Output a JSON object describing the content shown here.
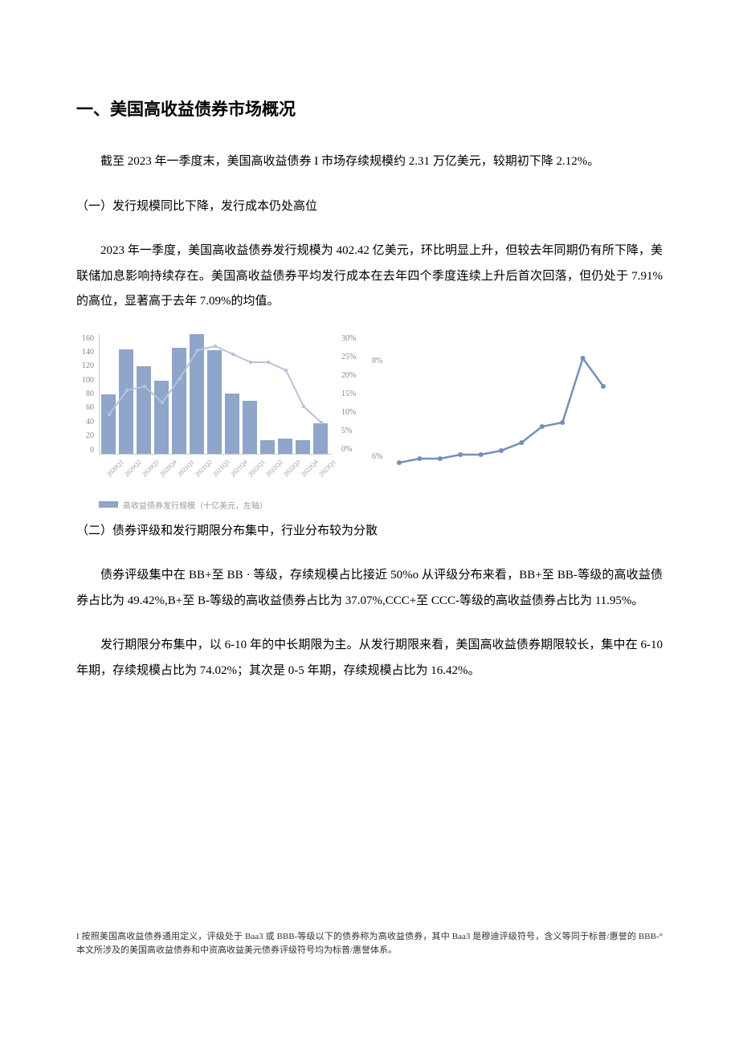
{
  "heading": "一、美国高收益债券市场概况",
  "para1": "截至 2023 年一季度末，美国高收益债券 I 市场存续规模约 2.31 万亿美元，较期初下降 2.12%。",
  "sub1": "（一）发行规模同比下降，发行成本仍处高位",
  "para2": "2023 年一季度，美国高收益债券发行规模为 402.42 亿美元，环比明显上升，但较去年同期仍有所下降，美联储加息影响持续存在。美国高收益债券平均发行成本在去年四个季度连续上升后首次回落，但仍处于 7.91%的高位，显著高于去年 7.09%的均值。",
  "sub2": "（二）债券评级和发行期限分布集中，行业分布较为分散",
  "para3": "债券评级集中在 BB+至 BB · 等级，存续规模占比接近 50%o 从评级分布来看，BB+至 BB-等级的高收益债券占比为 49.42%,B+至 B-等级的高收益债券占比为 37.07%,CCC+至 CCC-等级的高收益债券占比为 11.95%。",
  "para4": "发行期限分布集中，以 6-10 年的中长期限为主。从发行期限来看，美国高收益债券期限较长，集中在 6-10 年期，存续规模占比为 74.02%；其次是 0-5 年期，存续规模占比为 16.42%。",
  "footnote": "I 按照美国高收益债券通用定义，评级处于 Baa3 或 BBB-等级以下的债券称为高收益债券，其中 Baa3 是穆迪评级符号，含义等同于标普/惠誉的 BBB-°本文所涉及的美国高收益债券和中资高收益美元债券评级符号均为标普/惠誉体系。",
  "chart_left": {
    "type": "bar+line",
    "y_left_ticks": [
      "160",
      "140",
      "120",
      "100",
      "80",
      "60",
      "40",
      "20",
      "0"
    ],
    "y_right_ticks": [
      "30%",
      "25%",
      "20%",
      "15%",
      "10%",
      "5%",
      "0%"
    ],
    "bar_color": "#8fa5c9",
    "line_color": "#b6c2d8",
    "bars": [
      78,
      138,
      116,
      97,
      140,
      158,
      137,
      80,
      70,
      18,
      20,
      18,
      40
    ],
    "x_labels": [
      "2020Q1",
      "2020Q2",
      "2020Q3",
      "2020Q4",
      "2021Q1",
      "2021Q2",
      "2021Q3",
      "2021Q4",
      "2022Q1",
      "2022Q2",
      "2022Q3",
      "2022Q4",
      "2023Q1"
    ],
    "line_pts": [
      10,
      16,
      17,
      13,
      19,
      26,
      27,
      25,
      23,
      23,
      21,
      12,
      8
    ],
    "legend_label": "高收益债券发行规模（十亿美元，左轴）",
    "bg": "#ffffff",
    "grid_color": "#d8d8d8",
    "ylim_left": [
      0,
      160
    ],
    "ylim_right": [
      0,
      30
    ]
  },
  "chart_right": {
    "type": "line",
    "line_color": "#7490b8",
    "pts": [
      6.0,
      6.1,
      6.1,
      6.2,
      6.2,
      6.3,
      6.5,
      6.9,
      7.0,
      8.6,
      7.9
    ],
    "ylim": [
      6,
      9
    ],
    "y_left_label": "8%",
    "y_right_label_top": "",
    "y_bottom_label": "6%",
    "bg": "#ffffff",
    "grid_color": "#d8d8d8"
  }
}
